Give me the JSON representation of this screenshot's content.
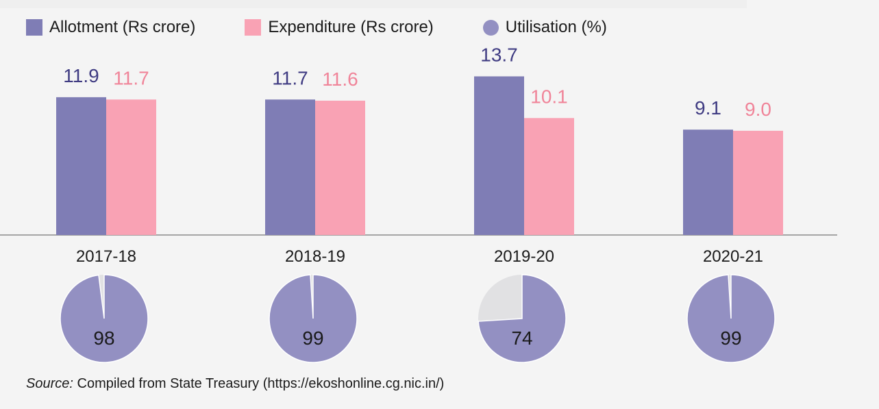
{
  "legend": [
    {
      "label": "Allotment (Rs crore)",
      "color": "#7f7db5",
      "shape": "square",
      "icon": "square-swatch"
    },
    {
      "label": "Expenditure (Rs crore)",
      "color": "#f9a2b4",
      "shape": "square",
      "icon": "square-swatch"
    },
    {
      "label": "Utilisation (%)",
      "color": "#9390c2",
      "shape": "circle",
      "icon": "circle-swatch"
    }
  ],
  "colors": {
    "allotment": "#7f7db5",
    "allotment_label": "#3f3b82",
    "expenditure": "#f9a2b4",
    "expenditure_label": "#f08499",
    "pie_fill": "#9390c2",
    "pie_rest": "#e1e1e3",
    "axis": "#8a8a8a"
  },
  "source": {
    "prefix": "Source:",
    "text": "Compiled from State Treasury (https://ekoshonline.cg.nic.in/)"
  },
  "chart_data": {
    "type": "bar",
    "categories": [
      "2017-18",
      "2018-19",
      "2019-20",
      "2020-21"
    ],
    "series": [
      {
        "name": "Allotment (Rs crore)",
        "values": [
          11.9,
          11.7,
          13.7,
          9.1
        ],
        "labels": [
          "11.9",
          "11.7",
          "13.7",
          "9.1"
        ]
      },
      {
        "name": "Expenditure (Rs crore)",
        "values": [
          11.7,
          11.6,
          10.1,
          9.0
        ],
        "labels": [
          "11.7",
          "11.6",
          "10.1",
          "9.0"
        ]
      }
    ],
    "utilisation": {
      "name": "Utilisation (%)",
      "type": "pie",
      "values": [
        98,
        99,
        74,
        99
      ]
    },
    "ylim": [
      0,
      15
    ],
    "grid": false,
    "legend_position": "top-left"
  }
}
